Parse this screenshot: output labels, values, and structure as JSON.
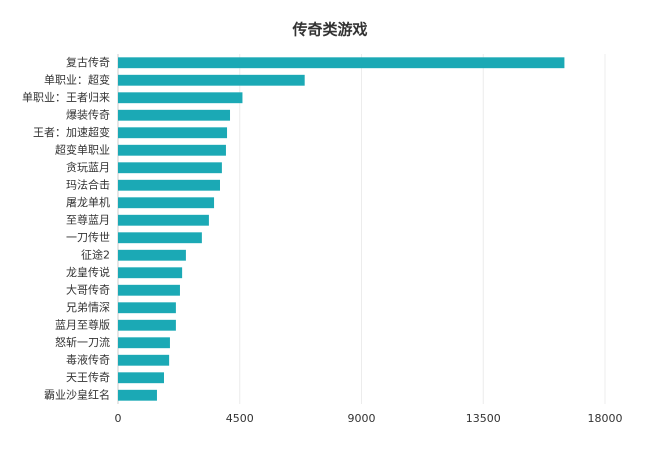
{
  "chart_data": {
    "type": "hbar",
    "title": "传奇类游戏",
    "categories": [
      "复古传奇",
      "单职业：超变",
      "单职业：王者归来",
      "爆装传奇",
      "王者：加速超变",
      "超变单职业",
      "贪玩蓝月",
      "玛法合击",
      "屠龙单机",
      "至尊蓝月",
      "一刀传世",
      "征途2",
      "龙皇传说",
      "大哥传奇",
      "兄弟情深",
      "蓝月至尊版",
      "怒斩一刀流",
      "毒液传奇",
      "天王传奇",
      "霸业沙皇红名"
    ],
    "values": [
      16500,
      6900,
      4600,
      4140,
      4030,
      3990,
      3840,
      3770,
      3550,
      3360,
      3100,
      2510,
      2370,
      2290,
      2140,
      2140,
      1920,
      1890,
      1700,
      1440
    ],
    "color": "#1ba9b5",
    "xlim": [
      0,
      18000
    ],
    "xticks": [
      0,
      4500,
      9000,
      13500,
      18000
    ],
    "grid": true
  }
}
